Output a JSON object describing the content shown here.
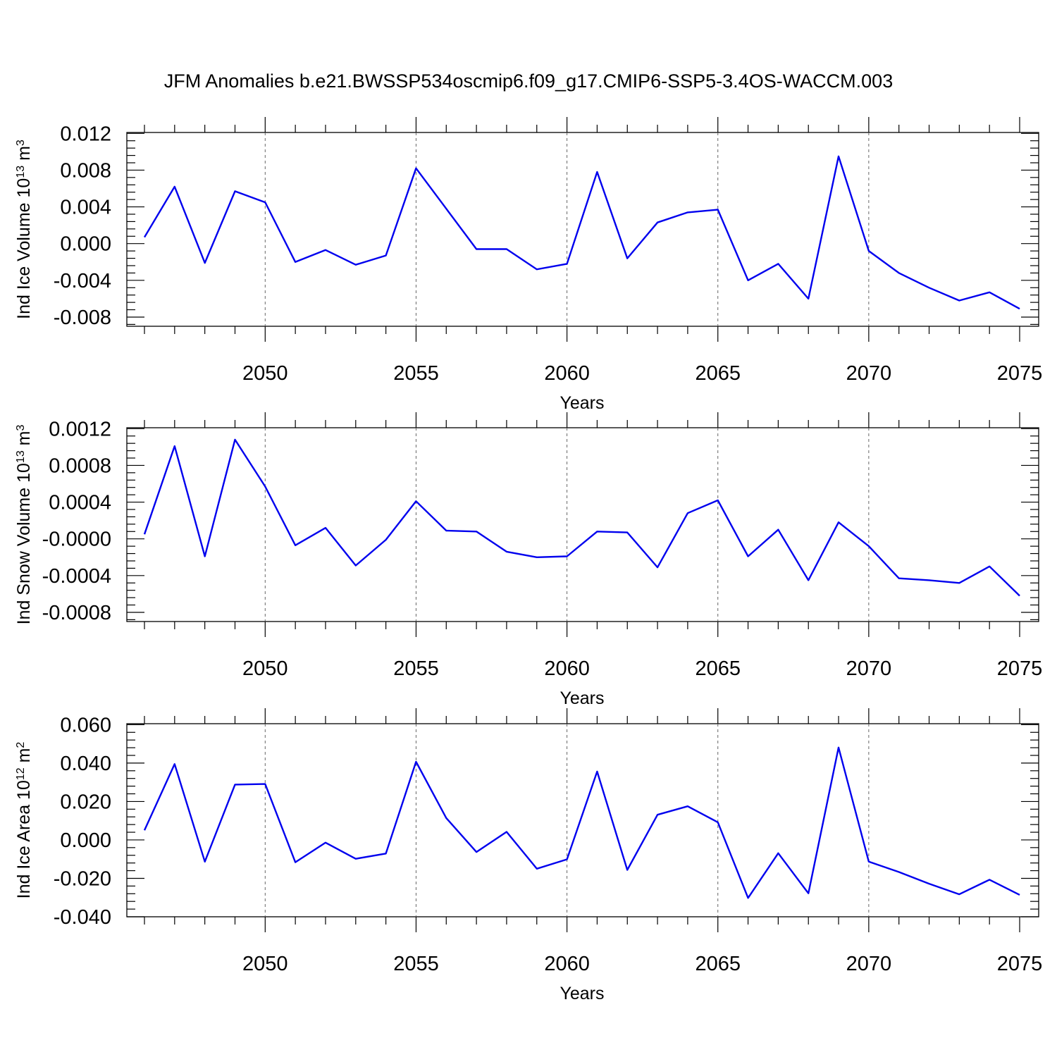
{
  "title": "JFM Anomalies b.e21.BWSSP534oscmip6.f09_g17.CMIP6-SSP5-3.4OS-WACCM.003",
  "colors": {
    "series": "#0000ee",
    "grid": "#666666"
  },
  "chart_data": [
    {
      "type": "line",
      "ylabel": "Ind Ice Volume 10",
      "ylabel_sup": "13",
      "ylabel_unit": "m",
      "ylabel_unit_sup": "3",
      "xlabel": "Years",
      "xlim": [
        2046,
        2075
      ],
      "ylim": [
        -0.009,
        0.0121
      ],
      "x_ticks": [
        2050,
        2055,
        2060,
        2065,
        2070,
        2075
      ],
      "x_tick_labels": [
        "2050",
        "2055",
        "2060",
        "2065",
        "2070",
        "2075"
      ],
      "y_ticks": [
        -0.008,
        -0.004,
        0.0,
        0.004,
        0.008,
        0.012
      ],
      "y_tick_labels": [
        "-0.008",
        "-0.004",
        "0.000",
        "0.004",
        "0.008",
        "0.012"
      ],
      "grid": "x-dashed",
      "x": [
        2046,
        2047,
        2048,
        2049,
        2050,
        2051,
        2052,
        2053,
        2054,
        2055,
        2056,
        2057,
        2058,
        2059,
        2060,
        2061,
        2062,
        2063,
        2064,
        2065,
        2066,
        2067,
        2068,
        2069,
        2070,
        2071,
        2072,
        2073,
        2074,
        2075
      ],
      "y": [
        0.0007,
        0.0062,
        -0.0021,
        0.0057,
        0.0045,
        -0.002,
        -0.0007,
        -0.0023,
        -0.0013,
        0.0082,
        0.0038,
        -0.0006,
        -0.0006,
        -0.0028,
        -0.0022,
        0.0078,
        -0.0016,
        0.0023,
        0.0034,
        0.0037,
        -0.004,
        -0.0022,
        -0.006,
        0.0095,
        -0.0008,
        -0.0032,
        -0.0048,
        -0.0062,
        -0.0053,
        -0.0071
      ]
    },
    {
      "type": "line",
      "ylabel": "Ind Snow Volume 10",
      "ylabel_sup": "13",
      "ylabel_unit": "m",
      "ylabel_unit_sup": "3",
      "xlabel": "Years",
      "xlim": [
        2046,
        2075
      ],
      "ylim": [
        -0.0009,
        0.00121
      ],
      "x_ticks": [
        2050,
        2055,
        2060,
        2065,
        2070,
        2075
      ],
      "x_tick_labels": [
        "2050",
        "2055",
        "2060",
        "2065",
        "2070",
        "2075"
      ],
      "y_ticks": [
        -0.0008,
        -0.0004,
        0.0,
        0.0004,
        0.0008,
        0.0012
      ],
      "y_tick_labels": [
        "-0.0008",
        "-0.0004",
        "-0.0000",
        "0.0004",
        "0.0008",
        "0.0012"
      ],
      "grid": "x-dashed",
      "x": [
        2046,
        2047,
        2048,
        2049,
        2050,
        2051,
        2052,
        2053,
        2054,
        2055,
        2056,
        2057,
        2058,
        2059,
        2060,
        2061,
        2062,
        2063,
        2064,
        2065,
        2066,
        2067,
        2068,
        2069,
        2070,
        2071,
        2072,
        2073,
        2074,
        2075
      ],
      "y": [
        5e-05,
        0.00101,
        -0.00019,
        0.00108,
        0.00057,
        -7e-05,
        0.00012,
        -0.00029,
        -1e-05,
        0.00041,
        9e-05,
        8e-05,
        -0.00014,
        -0.0002,
        -0.00019,
        8e-05,
        7e-05,
        -0.00031,
        0.00028,
        0.00042,
        -0.00019,
        0.0001,
        -0.00045,
        0.00018,
        -8e-05,
        -0.00043,
        -0.00045,
        -0.00048,
        -0.0003,
        -0.00062
      ]
    },
    {
      "type": "line",
      "ylabel": "Ind Ice Area 10",
      "ylabel_sup": "12",
      "ylabel_unit": "m",
      "ylabel_unit_sup": "2",
      "xlabel": "Years",
      "xlim": [
        2046,
        2075
      ],
      "ylim": [
        -0.04,
        0.0605
      ],
      "x_ticks": [
        2050,
        2055,
        2060,
        2065,
        2070,
        2075
      ],
      "x_tick_labels": [
        "2050",
        "2055",
        "2060",
        "2065",
        "2070",
        "2075"
      ],
      "y_ticks": [
        -0.04,
        -0.02,
        0.0,
        0.02,
        0.04,
        0.06
      ],
      "y_tick_labels": [
        "-0.040",
        "-0.020",
        "0.000",
        "0.020",
        "0.040",
        "0.060"
      ],
      "grid": "x-dashed",
      "x": [
        2046,
        2047,
        2048,
        2049,
        2050,
        2051,
        2052,
        2053,
        2054,
        2055,
        2056,
        2057,
        2058,
        2059,
        2060,
        2061,
        2062,
        2063,
        2064,
        2065,
        2066,
        2067,
        2068,
        2069,
        2070,
        2071,
        2072,
        2073,
        2074,
        2075
      ],
      "y": [
        0.005,
        0.0395,
        -0.0113,
        0.0288,
        0.0291,
        -0.0116,
        -0.0014,
        -0.0098,
        -0.0071,
        0.0407,
        0.0114,
        -0.0063,
        0.0042,
        -0.015,
        -0.0101,
        0.0356,
        -0.0156,
        0.0131,
        0.0175,
        0.0092,
        -0.0302,
        -0.0069,
        -0.0278,
        0.0481,
        -0.0113,
        -0.0167,
        -0.0228,
        -0.0283,
        -0.0207,
        -0.0286
      ]
    }
  ]
}
